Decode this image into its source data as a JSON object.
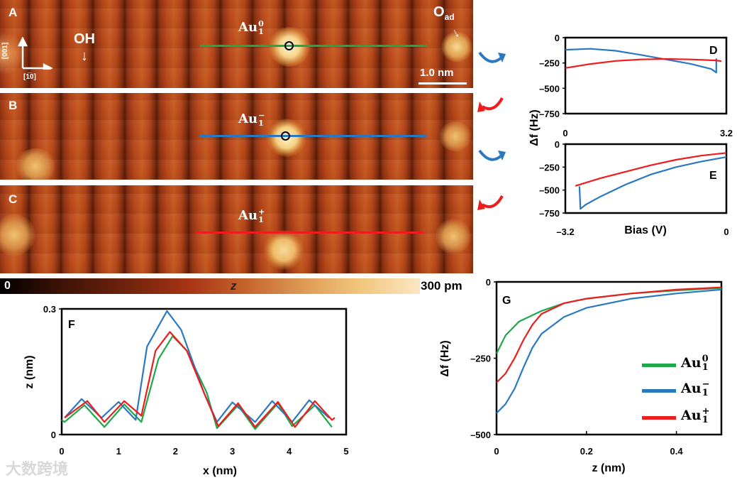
{
  "panels": {
    "A": {
      "letter": "A",
      "species": {
        "base": "Au",
        "sub": "1",
        "sup": "0"
      },
      "oh_label": "OH",
      "oad_label": {
        "base": "O",
        "sub": "ad"
      },
      "dir_vertical": "[001]",
      "dir_horizontal": "[1̅0]",
      "scale_bar": "1.0 nm",
      "line_color": "#1fa84a"
    },
    "B": {
      "letter": "B",
      "species": {
        "base": "Au",
        "sub": "1",
        "sup": "−"
      },
      "line_color": "#2a78c2"
    },
    "C": {
      "letter": "C",
      "species": {
        "base": "Au",
        "sub": "1",
        "sup": "+"
      },
      "line_color": "#ee1c1c"
    }
  },
  "colorbar": {
    "min_label": "0",
    "var_label": "z",
    "max_label": "300 pm"
  },
  "legend": [
    {
      "base": "Au",
      "sub": "1",
      "sup": "0",
      "color": "#1fa84a"
    },
    {
      "base": "Au",
      "sub": "1",
      "sup": "−",
      "color": "#2a78c2"
    },
    {
      "base": "Au",
      "sub": "1",
      "sup": "+",
      "color": "#ee1c1c"
    }
  ],
  "watermark": "大数跨境",
  "chart_data": [
    {
      "id": "D",
      "letter": "D",
      "type": "line",
      "xlim": [
        0,
        3.2
      ],
      "ylim": [
        -750,
        0
      ],
      "xticks": [
        {
          "v": 0,
          "label": "0"
        },
        {
          "v": 3.2,
          "label": "3.2"
        }
      ],
      "yticks": [
        {
          "v": 0,
          "label": "0"
        },
        {
          "v": -250,
          "label": "–250"
        },
        {
          "v": -500,
          "label": "–500"
        },
        {
          "v": -750,
          "label": "–750"
        }
      ],
      "ylabel": "Δf (Hz)",
      "series": [
        {
          "name": "Au1- (blue)",
          "color": "#2a78c2",
          "x": [
            0,
            0.5,
            1.0,
            1.5,
            2.0,
            2.5,
            2.9,
            3.0,
            3.0
          ],
          "y": [
            -120,
            -110,
            -130,
            -170,
            -215,
            -260,
            -310,
            -345,
            -205
          ]
        },
        {
          "name": "Au1+ (red)",
          "color": "#ee1c1c",
          "x": [
            0,
            0.5,
            1.0,
            1.5,
            2.0,
            2.5,
            3.0,
            3.1
          ],
          "y": [
            -300,
            -260,
            -230,
            -215,
            -210,
            -215,
            -225,
            -232
          ]
        }
      ]
    },
    {
      "id": "E",
      "letter": "E",
      "type": "line",
      "xlim": [
        -3.2,
        0
      ],
      "ylim": [
        -750,
        0
      ],
      "xticks": [
        {
          "v": -3.2,
          "label": "–3.2"
        },
        {
          "v": 0,
          "label": "0"
        }
      ],
      "yticks": [
        {
          "v": 0,
          "label": "0"
        },
        {
          "v": -250,
          "label": "–250"
        },
        {
          "v": -500,
          "label": "–500"
        },
        {
          "v": -750,
          "label": "–750"
        }
      ],
      "xlabel": "Bias (V)",
      "series": [
        {
          "name": "Au1+ (red)",
          "color": "#ee1c1c",
          "x": [
            -3.0,
            -2.5,
            -2.0,
            -1.5,
            -1.0,
            -0.5,
            0
          ],
          "y": [
            -455,
            -370,
            -300,
            -230,
            -170,
            -125,
            -95
          ]
        },
        {
          "name": "Au1- (blue)",
          "color": "#2a78c2",
          "x": [
            0,
            -0.5,
            -1.0,
            -1.5,
            -2.0,
            -2.5,
            -2.8,
            -2.9,
            -2.92
          ],
          "y": [
            -140,
            -190,
            -250,
            -330,
            -440,
            -570,
            -660,
            -705,
            -460
          ]
        }
      ]
    },
    {
      "id": "F",
      "letter": "F",
      "type": "line",
      "xlim": [
        0,
        5
      ],
      "ylim": [
        0,
        0.3
      ],
      "xticks": [
        {
          "v": 0,
          "label": "0"
        },
        {
          "v": 1,
          "label": "1"
        },
        {
          "v": 2,
          "label": "2"
        },
        {
          "v": 3,
          "label": "3"
        },
        {
          "v": 4,
          "label": "4"
        },
        {
          "v": 5,
          "label": "5"
        }
      ],
      "yticks": [
        {
          "v": 0,
          "label": "0"
        },
        {
          "v": 0.3,
          "label": "0.3"
        }
      ],
      "xlabel": "x (nm)",
      "ylabel": "z (nm)",
      "series": [
        {
          "name": "Au1-0",
          "color": "#1fa84a",
          "x": [
            0,
            0.05,
            0.4,
            0.75,
            1.1,
            1.4,
            1.7,
            1.95,
            2.2,
            2.55,
            2.73,
            3.1,
            3.4,
            3.8,
            4.05,
            4.45,
            4.75
          ],
          "y": [
            0.035,
            0.03,
            0.07,
            0.018,
            0.072,
            0.03,
            0.18,
            0.235,
            0.2,
            0.1,
            0.015,
            0.07,
            0.013,
            0.075,
            0.02,
            0.07,
            0.018
          ]
        },
        {
          "name": "Au1-",
          "color": "#2a78c2",
          "x": [
            0.05,
            0.35,
            0.7,
            1.0,
            1.3,
            1.5,
            1.85,
            2.1,
            2.5,
            2.73,
            3.0,
            3.4,
            3.7,
            4.05,
            4.35,
            4.7
          ],
          "y": [
            0.04,
            0.085,
            0.04,
            0.078,
            0.035,
            0.21,
            0.295,
            0.25,
            0.1,
            0.03,
            0.077,
            0.03,
            0.08,
            0.03,
            0.082,
            0.04
          ]
        },
        {
          "name": "Au1+",
          "color": "#ee1c1c",
          "x": [
            0.05,
            0.45,
            0.75,
            1.1,
            1.4,
            1.65,
            1.9,
            2.2,
            2.5,
            2.75,
            3.1,
            3.4,
            3.8,
            4.1,
            4.45,
            4.75,
            4.8
          ],
          "y": [
            0.04,
            0.08,
            0.03,
            0.08,
            0.045,
            0.2,
            0.245,
            0.2,
            0.1,
            0.02,
            0.075,
            0.018,
            0.078,
            0.018,
            0.08,
            0.035,
            0.04
          ]
        }
      ]
    },
    {
      "id": "G",
      "letter": "G",
      "type": "line",
      "xlim": [
        0,
        0.5
      ],
      "ylim": [
        -500,
        0
      ],
      "xticks": [
        {
          "v": 0,
          "label": "0"
        },
        {
          "v": 0.2,
          "label": "0.2"
        },
        {
          "v": 0.4,
          "label": "0.4"
        }
      ],
      "yticks": [
        {
          "v": 0,
          "label": "0"
        },
        {
          "v": -250,
          "label": "–250"
        },
        {
          "v": -500,
          "label": "–500"
        }
      ],
      "xlabel": "z (nm)",
      "ylabel": "Δf (Hz)",
      "series": [
        {
          "name": "Au1-0",
          "color": "#1fa84a",
          "x": [
            0,
            0.02,
            0.05,
            0.1,
            0.15,
            0.2,
            0.3,
            0.4,
            0.5
          ],
          "y": [
            -235,
            -175,
            -130,
            -95,
            -70,
            -55,
            -38,
            -28,
            -20
          ]
        },
        {
          "name": "Au1-",
          "color": "#2a78c2",
          "x": [
            0,
            0.02,
            0.04,
            0.06,
            0.08,
            0.1,
            0.15,
            0.2,
            0.3,
            0.4,
            0.5
          ],
          "y": [
            -430,
            -400,
            -350,
            -280,
            -215,
            -170,
            -115,
            -85,
            -55,
            -38,
            -25
          ]
        },
        {
          "name": "Au1+",
          "color": "#ee1c1c",
          "x": [
            0,
            0.02,
            0.04,
            0.06,
            0.08,
            0.1,
            0.15,
            0.2,
            0.3,
            0.4,
            0.5
          ],
          "y": [
            -330,
            -300,
            -250,
            -190,
            -140,
            -105,
            -70,
            -55,
            -38,
            -25,
            -18
          ]
        }
      ]
    }
  ]
}
